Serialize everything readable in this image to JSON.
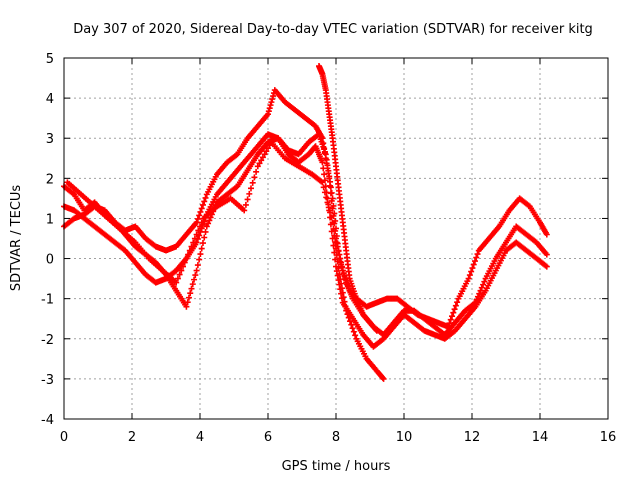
{
  "chart_data": {
    "type": "scatter",
    "title": "Day 307 of 2020, Sidereal Day-to-day VTEC variation (SDTVAR) for receiver kitg",
    "xlabel": "GPS time / hours",
    "ylabel": "SDTVAR / TECUs",
    "xlim": [
      0,
      16
    ],
    "ylim": [
      -4,
      5
    ],
    "xticks": [
      "0",
      "2",
      "4",
      "6",
      "8",
      "10",
      "12",
      "14",
      "16"
    ],
    "yticks": [
      "-4",
      "-3",
      "-2",
      "-1",
      "0",
      "1",
      "2",
      "3",
      "4",
      "5"
    ],
    "grid": true,
    "marker": "+",
    "marker_color": "#ff0000",
    "series": [
      {
        "x": [
          0,
          0.3,
          0.6,
          0.9,
          1.2,
          1.5,
          1.8,
          2.1,
          2.4,
          2.7,
          3.0,
          3.3,
          3.6,
          3.9,
          4.2,
          4.5,
          4.8,
          5.1,
          5.4,
          5.7,
          6.0,
          6.2,
          6.5,
          6.8,
          7.1,
          7.4,
          7.6,
          7.8,
          8.0,
          8.2,
          8.4,
          8.6,
          8.9,
          9.2,
          9.5,
          9.8,
          10.1,
          10.4,
          10.7,
          11.0,
          11.3,
          11.6,
          11.9,
          12.2,
          12.5,
          12.8,
          13.1,
          13.4,
          13.7,
          14.0,
          14.2
        ],
        "y": [
          1.8,
          1.6,
          1.2,
          1.4,
          1.1,
          0.9,
          0.7,
          0.8,
          0.5,
          0.3,
          0.2,
          0.3,
          0.6,
          0.9,
          1.6,
          2.1,
          2.4,
          2.6,
          3.0,
          3.3,
          3.6,
          4.2,
          3.9,
          3.7,
          3.5,
          3.3,
          3.0,
          2.0,
          0.5,
          -0.3,
          -0.8,
          -1.0,
          -1.2,
          -1.1,
          -1.0,
          -1.0,
          -1.2,
          -1.4,
          -1.5,
          -1.6,
          -1.7,
          -1.0,
          -0.5,
          0.2,
          0.5,
          0.8,
          1.2,
          1.5,
          1.3,
          0.9,
          0.6
        ]
      },
      {
        "x": [
          0,
          0.3,
          0.6,
          0.9,
          1.2,
          1.5,
          1.8,
          2.1,
          2.4,
          2.7,
          3.0,
          3.3,
          3.6,
          3.9,
          4.2,
          4.5,
          4.8,
          5.1,
          5.4,
          5.7,
          6.0,
          6.3,
          6.6,
          6.9,
          7.2,
          7.5,
          7.7,
          7.9,
          8.1,
          8.3,
          8.5,
          8.8,
          9.1,
          9.4,
          9.7,
          10.0,
          10.3,
          10.6,
          10.9,
          11.2,
          11.5,
          11.8,
          12.1,
          12.4,
          12.7,
          13.0,
          13.3,
          13.6,
          13.9,
          14.2
        ],
        "y": [
          1.3,
          1.2,
          1.0,
          0.8,
          0.6,
          0.4,
          0.2,
          -0.1,
          -0.4,
          -0.6,
          -0.5,
          -0.3,
          0.0,
          0.4,
          1.1,
          1.6,
          1.9,
          2.2,
          2.5,
          2.8,
          3.1,
          3.0,
          2.7,
          2.6,
          2.9,
          3.1,
          2.6,
          1.5,
          0.0,
          -0.6,
          -1.0,
          -1.4,
          -1.7,
          -1.9,
          -1.6,
          -1.3,
          -1.3,
          -1.5,
          -1.7,
          -1.9,
          -1.6,
          -1.3,
          -1.1,
          -0.5,
          0.0,
          0.4,
          0.8,
          0.6,
          0.4,
          0.1
        ]
      },
      {
        "x": [
          0,
          0.3,
          0.6,
          0.9,
          1.2,
          1.5,
          1.8,
          2.1,
          2.4,
          2.7,
          3.0,
          3.3,
          3.6,
          3.9,
          4.2,
          4.5,
          4.8,
          5.1,
          5.4,
          5.7,
          6.0,
          6.3,
          6.6,
          6.9,
          7.2,
          7.4,
          7.6,
          7.8,
          8.0,
          8.2,
          8.5,
          8.8,
          9.1,
          9.4,
          9.7,
          10.0,
          10.3,
          10.6,
          10.9,
          11.2,
          11.5,
          11.8,
          12.1,
          12.4,
          12.7,
          13.0,
          13.3,
          13.6,
          13.9,
          14.2
        ],
        "y": [
          0.8,
          1.0,
          1.1,
          1.3,
          1.2,
          0.9,
          0.6,
          0.3,
          0.1,
          -0.1,
          -0.4,
          -0.8,
          -1.2,
          -0.3,
          0.8,
          1.4,
          1.6,
          1.8,
          2.2,
          2.6,
          2.9,
          3.0,
          2.6,
          2.4,
          2.6,
          2.8,
          2.4,
          1.2,
          -0.2,
          -1.1,
          -1.5,
          -1.9,
          -2.2,
          -2.0,
          -1.7,
          -1.4,
          -1.6,
          -1.8,
          -1.9,
          -2.0,
          -1.8,
          -1.5,
          -1.2,
          -0.8,
          -0.3,
          0.2,
          0.4,
          0.2,
          0.0,
          -0.2
        ]
      },
      {
        "x": [
          0.1,
          0.5,
          0.9,
          1.3,
          1.7,
          2.1,
          2.5,
          2.9,
          3.3,
          3.7,
          4.1,
          4.5,
          4.9,
          5.3,
          5.7,
          6.1,
          6.5,
          6.9,
          7.3,
          7.6,
          7.9,
          8.1,
          8.3,
          8.6,
          8.9,
          9.2,
          9.4
        ],
        "y": [
          1.9,
          1.6,
          1.3,
          1.0,
          0.7,
          0.4,
          0.0,
          -0.3,
          -0.6,
          0.2,
          1.0,
          1.3,
          1.5,
          1.2,
          2.3,
          2.9,
          2.5,
          2.3,
          2.1,
          1.9,
          0.9,
          -0.4,
          -1.3,
          -2.0,
          -2.5,
          -2.8,
          -3.0
        ]
      },
      {
        "x": [
          7.5,
          7.6,
          7.7,
          7.8,
          7.9,
          8.0,
          8.1,
          8.2,
          8.3,
          8.4,
          8.6,
          8.8,
          9.0,
          9.2
        ],
        "y": [
          4.8,
          4.6,
          4.2,
          3.6,
          3.0,
          2.3,
          1.6,
          0.9,
          0.2,
          -0.5,
          -1.0,
          -1.4,
          -1.6,
          -1.8
        ]
      }
    ]
  }
}
